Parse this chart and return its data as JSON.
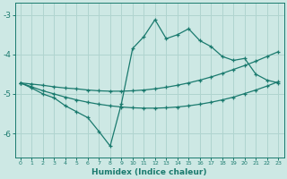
{
  "xlabel": "Humidex (Indice chaleur)",
  "background_color": "#cde8e4",
  "grid_color": "#b0d4cf",
  "line_color": "#1a7a6e",
  "xlim": [
    -0.5,
    23.5
  ],
  "ylim": [
    -6.6,
    -2.7
  ],
  "yticks": [
    -6,
    -5,
    -4,
    -3
  ],
  "xticks": [
    0,
    1,
    2,
    3,
    4,
    5,
    6,
    7,
    8,
    9,
    10,
    11,
    12,
    13,
    14,
    15,
    16,
    17,
    18,
    19,
    20,
    21,
    22,
    23
  ],
  "curve_main_x": [
    0,
    1,
    2,
    3,
    4,
    5,
    6,
    7,
    8,
    9,
    10,
    11,
    12,
    13,
    14,
    15,
    16,
    17,
    18,
    19,
    20,
    21,
    22,
    23
  ],
  "curve_main_y": [
    -4.72,
    -4.85,
    -5.0,
    -5.1,
    -5.3,
    -5.45,
    -5.6,
    -5.95,
    -6.32,
    -5.25,
    -3.85,
    -3.55,
    -3.12,
    -3.6,
    -3.5,
    -3.35,
    -3.65,
    -3.8,
    -4.05,
    -4.15,
    -4.1,
    -4.5,
    -4.65,
    -4.72
  ],
  "curve_top_x": [
    0,
    1,
    2,
    3,
    4,
    5,
    6,
    7,
    8,
    9,
    10,
    11,
    12,
    13,
    14,
    15,
    16,
    17,
    18,
    19,
    20,
    21,
    22,
    23
  ],
  "curve_top_y": [
    -4.72,
    -4.75,
    -4.78,
    -4.82,
    -4.85,
    -4.87,
    -4.9,
    -4.92,
    -4.93,
    -4.93,
    -4.92,
    -4.9,
    -4.87,
    -4.83,
    -4.78,
    -4.72,
    -4.65,
    -4.57,
    -4.48,
    -4.38,
    -4.28,
    -4.17,
    -4.05,
    -3.93
  ],
  "curve_bot_x": [
    0,
    1,
    2,
    3,
    4,
    5,
    6,
    7,
    8,
    9,
    10,
    11,
    12,
    13,
    14,
    15,
    16,
    17,
    18,
    19,
    20,
    21,
    22,
    23
  ],
  "curve_bot_y": [
    -4.72,
    -4.82,
    -4.92,
    -5.0,
    -5.08,
    -5.15,
    -5.21,
    -5.26,
    -5.3,
    -5.33,
    -5.35,
    -5.36,
    -5.36,
    -5.35,
    -5.33,
    -5.3,
    -5.26,
    -5.21,
    -5.15,
    -5.08,
    -4.99,
    -4.9,
    -4.8,
    -4.69
  ]
}
